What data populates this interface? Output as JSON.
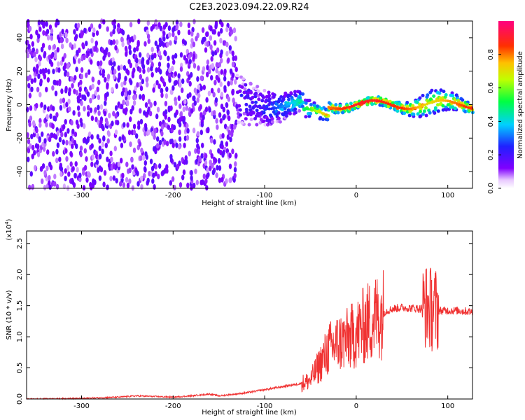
{
  "title": "C2E3.2023.094.22.09.R24",
  "colors": {
    "signal": "#f03232",
    "axis": "#000000"
  },
  "chart_data": [
    {
      "type": "heatmap",
      "xlabel": "Height of straight line (km)",
      "ylabel": "Frequency (Hz)",
      "xlim": [
        -360,
        127
      ],
      "ylim": [
        -50,
        50
      ],
      "xticks": [
        -300,
        -200,
        -100,
        0,
        100
      ],
      "yticks": [
        -40,
        -20,
        0,
        20,
        40
      ],
      "colorbar": {
        "label": "Normalized spectral amplitude",
        "range": [
          0.0,
          1.0
        ],
        "ticks": [
          "0.0",
          "0.2",
          "0.4",
          "0.6",
          "0.8"
        ],
        "colormap": "rainbow (white-violet-blue-cyan-green-yellow-orange-red-magenta)"
      },
      "description_points": [
        {
          "x": -330,
          "freq_spread": 50,
          "level": 0.1
        },
        {
          "x": -200,
          "freq_spread": 40,
          "level": 0.12
        },
        {
          "x": -130,
          "freq_spread": 15,
          "level": 0.15
        },
        {
          "x": -100,
          "freq_spread": 10,
          "level": 0.2
        },
        {
          "x": -60,
          "freq_spread": 6,
          "level": 0.45
        },
        {
          "x": -30,
          "freq_spread": 3,
          "level": 0.8
        },
        {
          "x": 0,
          "freq_spread": 2,
          "level": 0.9
        },
        {
          "x": 50,
          "freq_spread": 3,
          "level": 0.85
        },
        {
          "x": 80,
          "freq_spread": 8,
          "level": 0.7
        },
        {
          "x": 120,
          "freq_spread": 3,
          "level": 0.85
        }
      ]
    },
    {
      "type": "line",
      "xlabel": "Height of straight line (km)",
      "ylabel": "SNR (10 * v/v)",
      "y_multiplier": "(x10",
      "y_multiplier_exp": "4",
      "y_multiplier_close": ")",
      "xlim": [
        -360,
        127
      ],
      "ylim": [
        0,
        2.7
      ],
      "xticks": [
        -300,
        -200,
        -100,
        0,
        100
      ],
      "yticks": [
        "0.0",
        "0.5",
        "1.0",
        "1.5",
        "2.0",
        "2.5"
      ],
      "series": [
        {
          "x": [
            -360,
            -300,
            -260,
            -240,
            -200,
            -180,
            -160,
            -150,
            -120,
            -100,
            -80,
            -60,
            -50,
            -40,
            -30,
            -20,
            -10,
            0,
            10,
            20,
            30,
            40,
            50,
            60,
            70,
            75,
            80,
            85,
            90,
            100,
            110,
            120,
            127
          ],
          "y": [
            0.0,
            0.01,
            0.03,
            0.05,
            0.03,
            0.05,
            0.08,
            0.05,
            0.1,
            0.15,
            0.2,
            0.25,
            0.3,
            0.55,
            0.8,
            0.9,
            0.95,
            1.05,
            1.2,
            1.3,
            1.4,
            1.45,
            1.47,
            1.46,
            1.45,
            1.5,
            1.45,
            1.45,
            1.42,
            1.42,
            1.42,
            1.41,
            1.4
          ]
        }
      ]
    }
  ]
}
